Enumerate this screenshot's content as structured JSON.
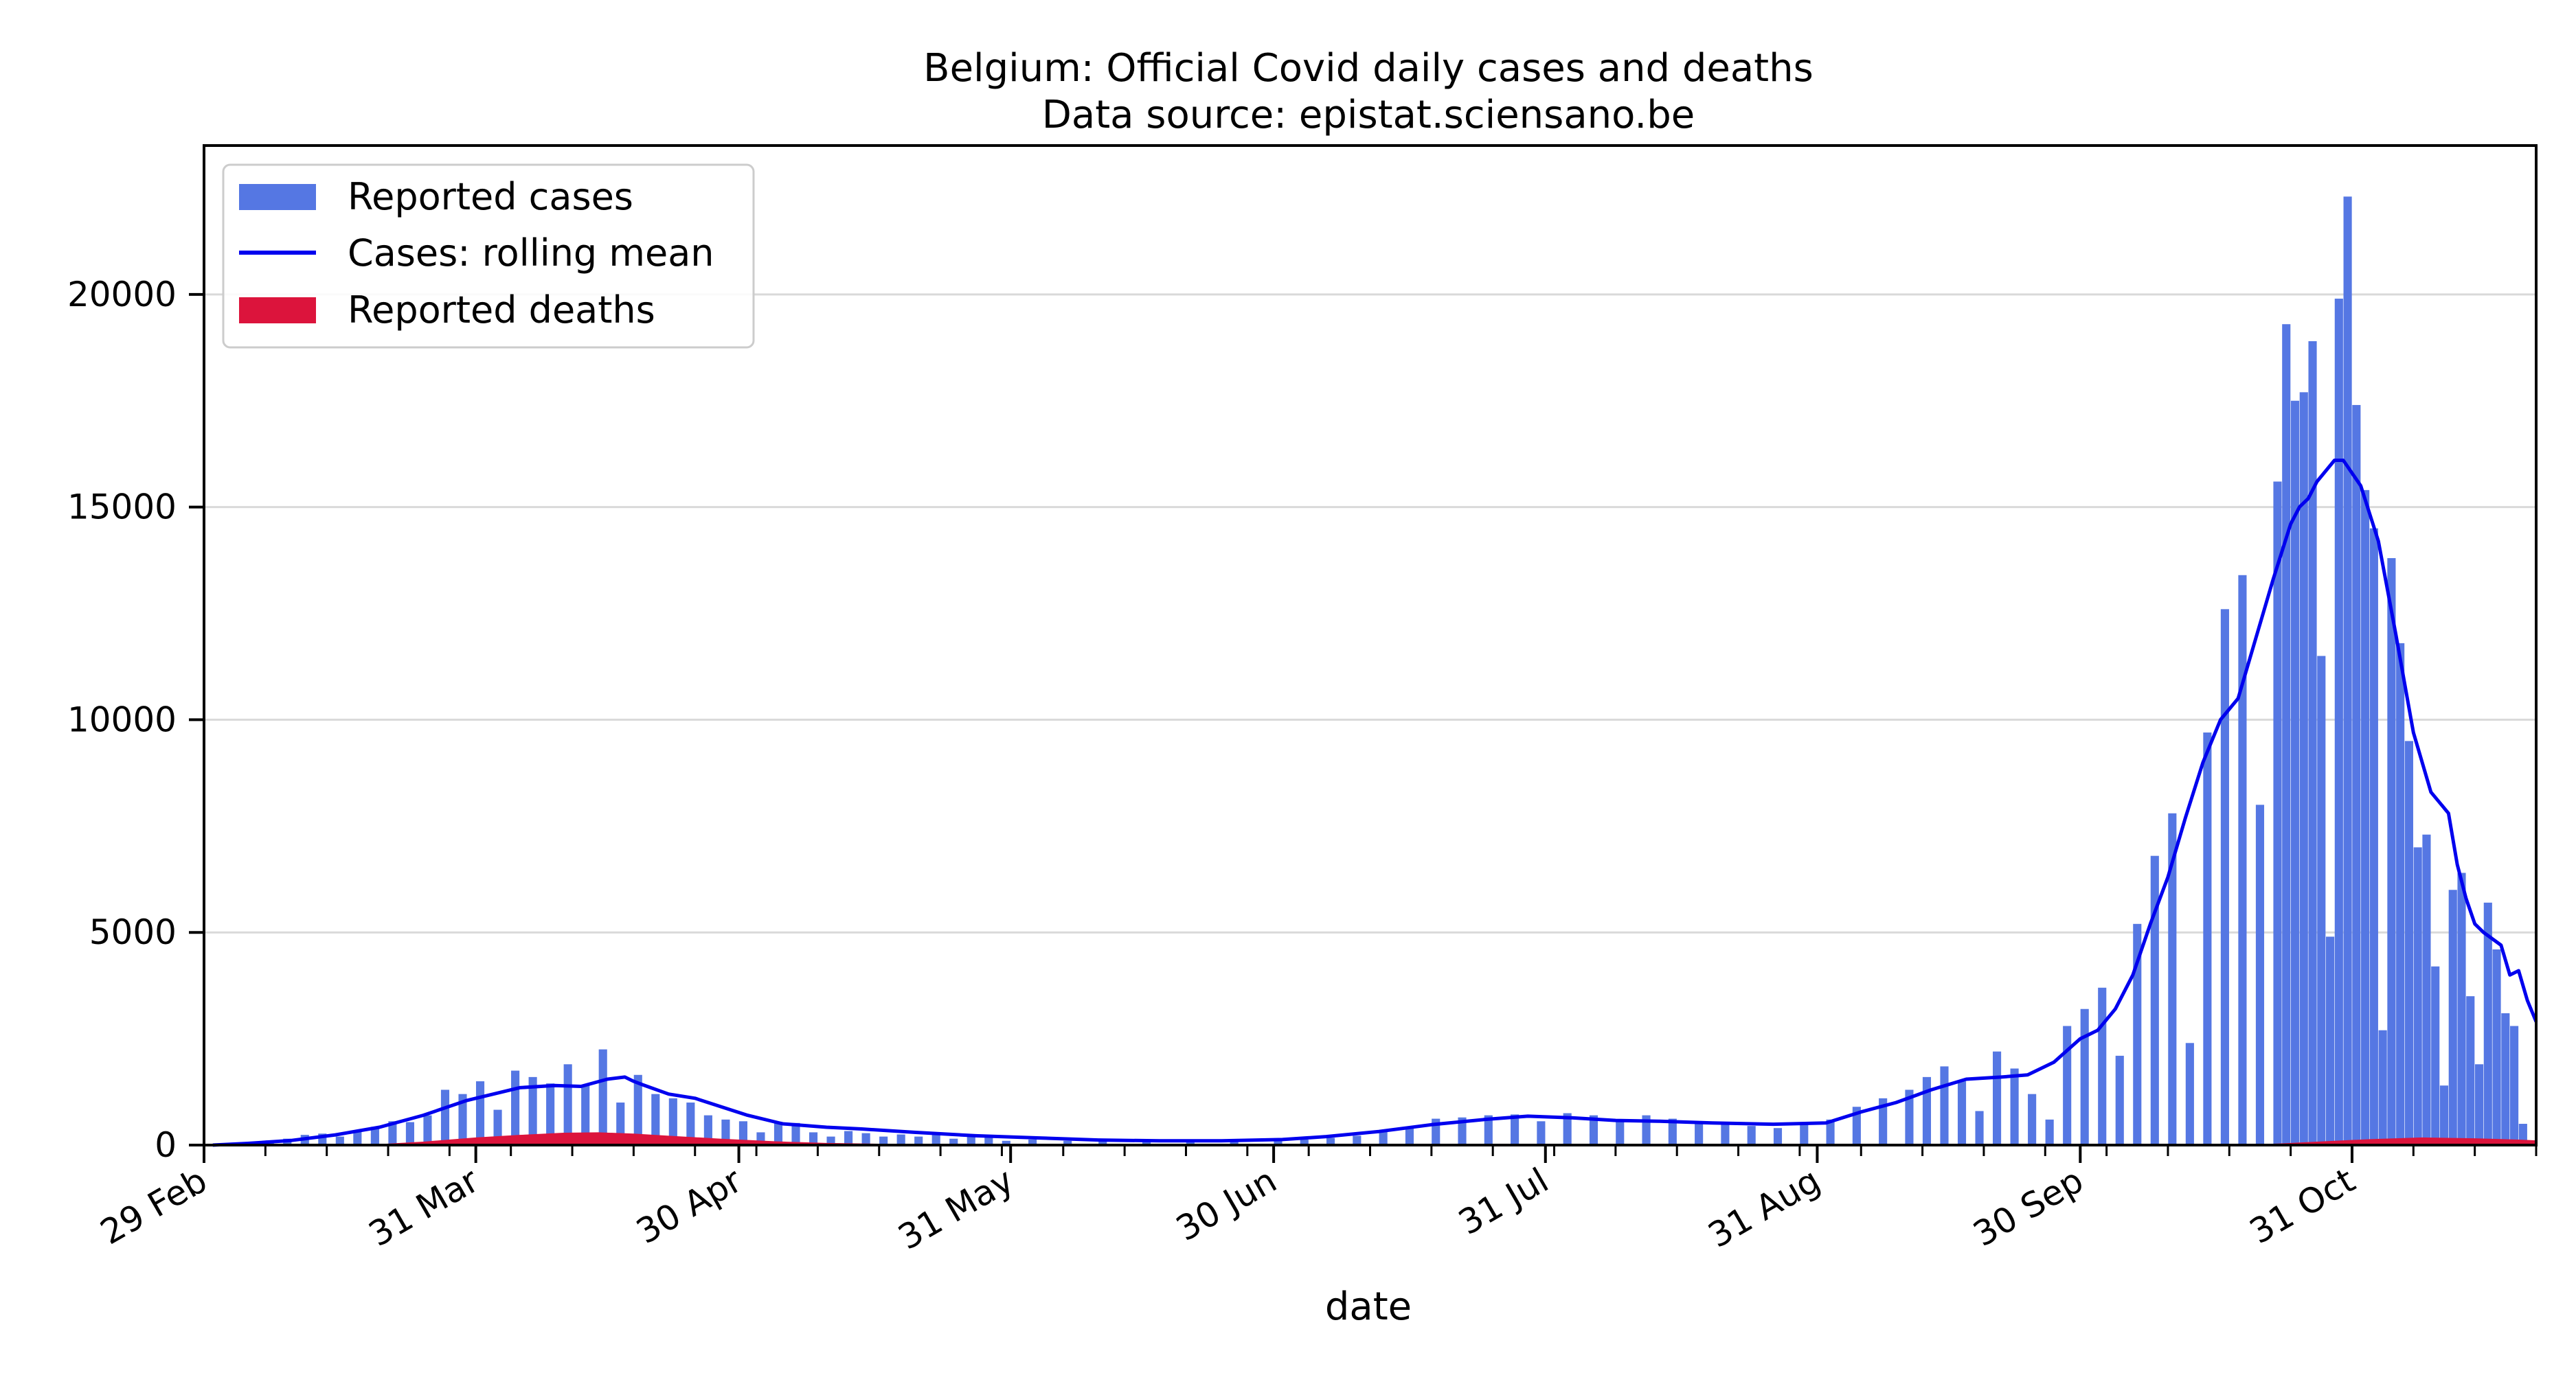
{
  "chart_data": {
    "type": "bar",
    "title": "Belgium: Official Covid daily cases and deaths",
    "subtitle": "Data source: epistat.sciensano.be",
    "xlabel": "date",
    "ylabel": "",
    "x_start": "2020-02-29",
    "x_end": "2020-11-21",
    "xlim": [
      "2020-02-29",
      "2020-11-21"
    ],
    "ylim": [
      0,
      23500
    ],
    "y_ticks": [
      0,
      5000,
      10000,
      15000,
      20000
    ],
    "y_tick_labels": [
      "0",
      "5000",
      "10000",
      "15000",
      "20000"
    ],
    "x_ticks": [
      {
        "date": "2020-02-29",
        "label": "29 Feb"
      },
      {
        "date": "2020-03-31",
        "label": "31 Mar"
      },
      {
        "date": "2020-04-30",
        "label": "30 Apr"
      },
      {
        "date": "2020-05-31",
        "label": "31 May"
      },
      {
        "date": "2020-06-30",
        "label": "30 Jun"
      },
      {
        "date": "2020-07-31",
        "label": "31 Jul"
      },
      {
        "date": "2020-08-31",
        "label": "31 Aug"
      },
      {
        "date": "2020-09-30",
        "label": "30 Sep"
      },
      {
        "date": "2020-10-31",
        "label": "31 Oct"
      }
    ],
    "grid": "horizontal",
    "legend_position": "top-left",
    "colors": {
      "cases": "#5577e3",
      "rolling": "#0000ee",
      "deaths": "#dc143c",
      "grid": "#d9d9d9"
    },
    "legend": [
      {
        "label": "Reported cases",
        "kind": "bar",
        "color": "#5577e3"
      },
      {
        "label": "Cases: rolling mean",
        "kind": "line",
        "color": "#0000ee"
      },
      {
        "label": "Reported deaths",
        "kind": "bar",
        "color": "#dc143c"
      }
    ],
    "series": [
      {
        "name": "Reported cases",
        "kind": "bar",
        "points": [
          [
            "2020-03-01",
            0
          ],
          [
            "2020-03-03",
            20
          ],
          [
            "2020-03-05",
            60
          ],
          [
            "2020-03-07",
            110
          ],
          [
            "2020-03-09",
            150
          ],
          [
            "2020-03-11",
            240
          ],
          [
            "2020-03-13",
            270
          ],
          [
            "2020-03-15",
            200
          ],
          [
            "2020-03-17",
            330
          ],
          [
            "2020-03-19",
            430
          ],
          [
            "2020-03-21",
            560
          ],
          [
            "2020-03-23",
            540
          ],
          [
            "2020-03-25",
            700
          ],
          [
            "2020-03-27",
            1300
          ],
          [
            "2020-03-29",
            1200
          ],
          [
            "2020-03-31",
            1500
          ],
          [
            "2020-04-02",
            830
          ],
          [
            "2020-04-04",
            1750
          ],
          [
            "2020-04-06",
            1600
          ],
          [
            "2020-04-08",
            1450
          ],
          [
            "2020-04-10",
            1900
          ],
          [
            "2020-04-12",
            1400
          ],
          [
            "2020-04-14",
            2250
          ],
          [
            "2020-04-16",
            1000
          ],
          [
            "2020-04-18",
            1650
          ],
          [
            "2020-04-20",
            1200
          ],
          [
            "2020-04-22",
            1100
          ],
          [
            "2020-04-24",
            1000
          ],
          [
            "2020-04-26",
            700
          ],
          [
            "2020-04-28",
            600
          ],
          [
            "2020-04-30",
            560
          ],
          [
            "2020-05-02",
            300
          ],
          [
            "2020-05-04",
            550
          ],
          [
            "2020-05-06",
            520
          ],
          [
            "2020-05-08",
            300
          ],
          [
            "2020-05-10",
            200
          ],
          [
            "2020-05-12",
            330
          ],
          [
            "2020-05-14",
            280
          ],
          [
            "2020-05-16",
            200
          ],
          [
            "2020-05-18",
            250
          ],
          [
            "2020-05-20",
            200
          ],
          [
            "2020-05-22",
            260
          ],
          [
            "2020-05-24",
            150
          ],
          [
            "2020-05-26",
            200
          ],
          [
            "2020-05-28",
            180
          ],
          [
            "2020-05-30",
            100
          ],
          [
            "2020-06-02",
            130
          ],
          [
            "2020-06-06",
            100
          ],
          [
            "2020-06-10",
            90
          ],
          [
            "2020-06-15",
            80
          ],
          [
            "2020-06-20",
            90
          ],
          [
            "2020-06-25",
            100
          ],
          [
            "2020-06-30",
            100
          ],
          [
            "2020-07-03",
            130
          ],
          [
            "2020-07-06",
            170
          ],
          [
            "2020-07-09",
            220
          ],
          [
            "2020-07-12",
            350
          ],
          [
            "2020-07-15",
            410
          ],
          [
            "2020-07-18",
            620
          ],
          [
            "2020-07-21",
            650
          ],
          [
            "2020-07-24",
            700
          ],
          [
            "2020-07-27",
            720
          ],
          [
            "2020-07-30",
            560
          ],
          [
            "2020-08-02",
            750
          ],
          [
            "2020-08-05",
            700
          ],
          [
            "2020-08-08",
            600
          ],
          [
            "2020-08-11",
            700
          ],
          [
            "2020-08-14",
            620
          ],
          [
            "2020-08-17",
            540
          ],
          [
            "2020-08-20",
            500
          ],
          [
            "2020-08-23",
            450
          ],
          [
            "2020-08-26",
            400
          ],
          [
            "2020-08-29",
            500
          ],
          [
            "2020-09-01",
            600
          ],
          [
            "2020-09-04",
            900
          ],
          [
            "2020-09-07",
            1100
          ],
          [
            "2020-09-10",
            1300
          ],
          [
            "2020-09-12",
            1600
          ],
          [
            "2020-09-14",
            1850
          ],
          [
            "2020-09-16",
            1500
          ],
          [
            "2020-09-18",
            800
          ],
          [
            "2020-09-20",
            2200
          ],
          [
            "2020-09-22",
            1800
          ],
          [
            "2020-09-24",
            1200
          ],
          [
            "2020-09-26",
            600
          ],
          [
            "2020-09-28",
            2800
          ],
          [
            "2020-09-30",
            3200
          ],
          [
            "2020-10-02",
            3700
          ],
          [
            "2020-10-04",
            2100
          ],
          [
            "2020-10-06",
            5200
          ],
          [
            "2020-10-08",
            6800
          ],
          [
            "2020-10-10",
            7800
          ],
          [
            "2020-10-12",
            2400
          ],
          [
            "2020-10-14",
            9700
          ],
          [
            "2020-10-16",
            12600
          ],
          [
            "2020-10-18",
            13400
          ],
          [
            "2020-10-20",
            8000
          ],
          [
            "2020-10-22",
            15600
          ],
          [
            "2020-10-23",
            19300
          ],
          [
            "2020-10-24",
            17500
          ],
          [
            "2020-10-25",
            17700
          ],
          [
            "2020-10-26",
            18900
          ],
          [
            "2020-10-27",
            11500
          ],
          [
            "2020-10-28",
            4900
          ],
          [
            "2020-10-29",
            19900
          ],
          [
            "2020-10-30",
            22300
          ],
          [
            "2020-10-31",
            17400
          ],
          [
            "2020-11-01",
            15400
          ],
          [
            "2020-11-02",
            14500
          ],
          [
            "2020-11-03",
            2700
          ],
          [
            "2020-11-04",
            13800
          ],
          [
            "2020-11-05",
            11800
          ],
          [
            "2020-11-06",
            9500
          ],
          [
            "2020-11-07",
            7000
          ],
          [
            "2020-11-08",
            7300
          ],
          [
            "2020-11-09",
            4200
          ],
          [
            "2020-11-10",
            1400
          ],
          [
            "2020-11-11",
            6000
          ],
          [
            "2020-11-12",
            6400
          ],
          [
            "2020-11-13",
            3500
          ],
          [
            "2020-11-14",
            1900
          ],
          [
            "2020-11-15",
            5700
          ],
          [
            "2020-11-16",
            4600
          ],
          [
            "2020-11-17",
            3100
          ],
          [
            "2020-11-18",
            2800
          ],
          [
            "2020-11-19",
            500
          ]
        ]
      },
      {
        "name": "Cases: rolling mean",
        "kind": "line",
        "points": [
          [
            "2020-03-01",
            0
          ],
          [
            "2020-03-05",
            40
          ],
          [
            "2020-03-10",
            110
          ],
          [
            "2020-03-15",
            240
          ],
          [
            "2020-03-20",
            420
          ],
          [
            "2020-03-25",
            700
          ],
          [
            "2020-03-30",
            1050
          ],
          [
            "2020-04-02",
            1200
          ],
          [
            "2020-04-05",
            1350
          ],
          [
            "2020-04-09",
            1400
          ],
          [
            "2020-04-12",
            1380
          ],
          [
            "2020-04-15",
            1550
          ],
          [
            "2020-04-17",
            1600
          ],
          [
            "2020-04-18",
            1500
          ],
          [
            "2020-04-19",
            1420
          ],
          [
            "2020-04-22",
            1200
          ],
          [
            "2020-04-25",
            1100
          ],
          [
            "2020-04-28",
            900
          ],
          [
            "2020-05-01",
            700
          ],
          [
            "2020-05-05",
            500
          ],
          [
            "2020-05-10",
            420
          ],
          [
            "2020-05-14",
            380
          ],
          [
            "2020-05-20",
            300
          ],
          [
            "2020-05-27",
            220
          ],
          [
            "2020-06-03",
            170
          ],
          [
            "2020-06-10",
            120
          ],
          [
            "2020-06-17",
            100
          ],
          [
            "2020-06-24",
            100
          ],
          [
            "2020-07-01",
            130
          ],
          [
            "2020-07-06",
            200
          ],
          [
            "2020-07-12",
            320
          ],
          [
            "2020-07-18",
            480
          ],
          [
            "2020-07-24",
            600
          ],
          [
            "2020-07-29",
            680
          ],
          [
            "2020-08-03",
            640
          ],
          [
            "2020-08-08",
            580
          ],
          [
            "2020-08-13",
            560
          ],
          [
            "2020-08-19",
            520
          ],
          [
            "2020-08-26",
            490
          ],
          [
            "2020-09-01",
            520
          ],
          [
            "2020-09-05",
            780
          ],
          [
            "2020-09-09",
            1000
          ],
          [
            "2020-09-13",
            1300
          ],
          [
            "2020-09-17",
            1550
          ],
          [
            "2020-09-21",
            1600
          ],
          [
            "2020-09-24",
            1650
          ],
          [
            "2020-09-27",
            1950
          ],
          [
            "2020-09-30",
            2500
          ],
          [
            "2020-10-02",
            2700
          ],
          [
            "2020-10-04",
            3200
          ],
          [
            "2020-10-06",
            4000
          ],
          [
            "2020-10-08",
            5200
          ],
          [
            "2020-10-10",
            6300
          ],
          [
            "2020-10-12",
            7700
          ],
          [
            "2020-10-14",
            9000
          ],
          [
            "2020-10-16",
            10000
          ],
          [
            "2020-10-18",
            10500
          ],
          [
            "2020-10-20",
            11900
          ],
          [
            "2020-10-22",
            13300
          ],
          [
            "2020-10-24",
            14600
          ],
          [
            "2020-10-25",
            15000
          ],
          [
            "2020-10-26",
            15200
          ],
          [
            "2020-10-27",
            15600
          ],
          [
            "2020-10-29",
            16100
          ],
          [
            "2020-10-30",
            16100
          ],
          [
            "2020-11-01",
            15500
          ],
          [
            "2020-11-03",
            14200
          ],
          [
            "2020-11-05",
            12000
          ],
          [
            "2020-11-07",
            9700
          ],
          [
            "2020-11-09",
            8300
          ],
          [
            "2020-11-11",
            7800
          ],
          [
            "2020-11-12",
            6600
          ],
          [
            "2020-11-13",
            5800
          ],
          [
            "2020-11-14",
            5200
          ],
          [
            "2020-11-15",
            5000
          ],
          [
            "2020-11-17",
            4700
          ],
          [
            "2020-11-18",
            4000
          ],
          [
            "2020-11-19",
            4100
          ],
          [
            "2020-11-20",
            3400
          ],
          [
            "2020-11-21",
            2900
          ]
        ]
      },
      {
        "name": "Reported deaths",
        "kind": "area",
        "points": [
          [
            "2020-03-01",
            0
          ],
          [
            "2020-03-18",
            0
          ],
          [
            "2020-03-25",
            80
          ],
          [
            "2020-03-31",
            180
          ],
          [
            "2020-04-05",
            240
          ],
          [
            "2020-04-10",
            290
          ],
          [
            "2020-04-14",
            300
          ],
          [
            "2020-04-18",
            270
          ],
          [
            "2020-04-22",
            220
          ],
          [
            "2020-04-28",
            150
          ],
          [
            "2020-05-04",
            90
          ],
          [
            "2020-05-10",
            50
          ],
          [
            "2020-05-18",
            25
          ],
          [
            "2020-05-25",
            10
          ],
          [
            "2020-06-01",
            0
          ],
          [
            "2020-10-18",
            0
          ],
          [
            "2020-10-23",
            40
          ],
          [
            "2020-10-28",
            90
          ],
          [
            "2020-11-02",
            140
          ],
          [
            "2020-11-08",
            180
          ],
          [
            "2020-11-14",
            160
          ],
          [
            "2020-11-19",
            130
          ],
          [
            "2020-11-21",
            110
          ]
        ]
      }
    ]
  }
}
